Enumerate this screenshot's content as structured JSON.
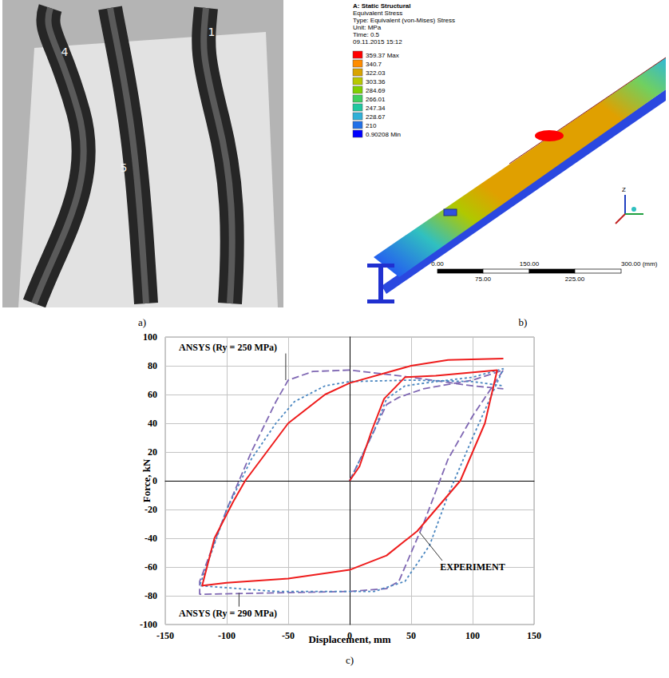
{
  "panel_a": {
    "label": "a)",
    "photo_labels": [
      "4",
      "5",
      "1"
    ]
  },
  "panel_b": {
    "label": "b)",
    "header": [
      "A: Static Structural",
      "Equivalent Stress",
      "Type: Equivalent (von-Mises) Stress",
      "Unit: MPa",
      "Time: 0.5",
      "09.11.2015 15:12"
    ],
    "contour_legend": {
      "labels": [
        "359.37 Max",
        "340.7",
        "322.03",
        "303.36",
        "284.69",
        "266.01",
        "247.34",
        "228.67",
        "210",
        "0.90208 Min"
      ],
      "colors": [
        "#ff0000",
        "#ff8c00",
        "#d9a400",
        "#b8c800",
        "#80d000",
        "#40d060",
        "#20c8a0",
        "#30b0d8",
        "#2070e8",
        "#0000ff"
      ]
    },
    "scale_bar": {
      "top": [
        "0.00",
        "150.00",
        "300.00 (mm)"
      ],
      "bottom": [
        "75.00",
        "225.00"
      ]
    },
    "triad": {
      "label": "Z"
    }
  },
  "panel_c": {
    "label": "c)"
  },
  "chart_data": {
    "type": "line",
    "x_label": "Displacement, mm",
    "y_label": "Force, kN",
    "xlim": [
      -150,
      150
    ],
    "xticks": [
      -150,
      -100,
      -50,
      0,
      50,
      100,
      150
    ],
    "ylim": [
      -100,
      100
    ],
    "yticks": [
      -100,
      -80,
      -60,
      -40,
      -20,
      0,
      20,
      40,
      60,
      80,
      100
    ],
    "grid": true,
    "series": [
      {
        "name": "ANSYS (Ry = 250 MPa)",
        "color": "#7f67b3",
        "line_style": "dashed",
        "x": [
          0,
          20,
          30,
          40,
          60,
          100,
          125,
          100,
          80,
          60,
          40,
          30,
          0,
          -60,
          -122,
          -122,
          -100,
          -80,
          -60,
          -50,
          -30,
          0,
          50,
          100,
          125
        ],
        "values": [
          0,
          35,
          53,
          58,
          64,
          70,
          77,
          45,
          15,
          -30,
          -70,
          -75,
          -77,
          -78,
          -79,
          -70,
          -20,
          20,
          55,
          70,
          76,
          77,
          72,
          66,
          64
        ],
        "label_at": [
          -99,
          93
        ],
        "label_target": [
          -52,
          70
        ]
      },
      {
        "name": "ANSYS (Ry = 290 MPa)",
        "color": "#4a86c0",
        "line_style": "dotted",
        "x": [
          0,
          20,
          30,
          45,
          70,
          100,
          125,
          100,
          80,
          65,
          45,
          20,
          0,
          -60,
          -122,
          -100,
          -80,
          -60,
          -45,
          -20,
          0,
          50,
          100,
          125
        ],
        "values": [
          0,
          35,
          57,
          66,
          69,
          72,
          78,
          30,
          -10,
          -45,
          -70,
          -77,
          -77,
          -77,
          -73,
          -20,
          15,
          40,
          55,
          66,
          69,
          70,
          69,
          66
        ],
        "label_at": [
          -99,
          -92
        ],
        "label_target": [
          -90,
          -78
        ]
      },
      {
        "name": "EXPERIMENT",
        "color": "#ee1c1c",
        "line_style": "solid",
        "x": [
          0,
          8,
          18,
          28,
          45,
          70,
          95,
          120,
          110,
          90,
          70,
          55,
          30,
          0,
          -50,
          -100,
          -120,
          -110,
          -95,
          -85,
          -50,
          -20,
          0,
          50,
          80,
          125
        ],
        "values": [
          0,
          10,
          35,
          57,
          72,
          73,
          75,
          77,
          40,
          0,
          -20,
          -35,
          -52,
          -62,
          -68,
          -71,
          -73,
          -40,
          -15,
          0,
          40,
          60,
          68,
          80,
          84,
          85
        ],
        "label_at": [
          100,
          -60
        ],
        "label_target": [
          57,
          -36
        ]
      }
    ]
  }
}
